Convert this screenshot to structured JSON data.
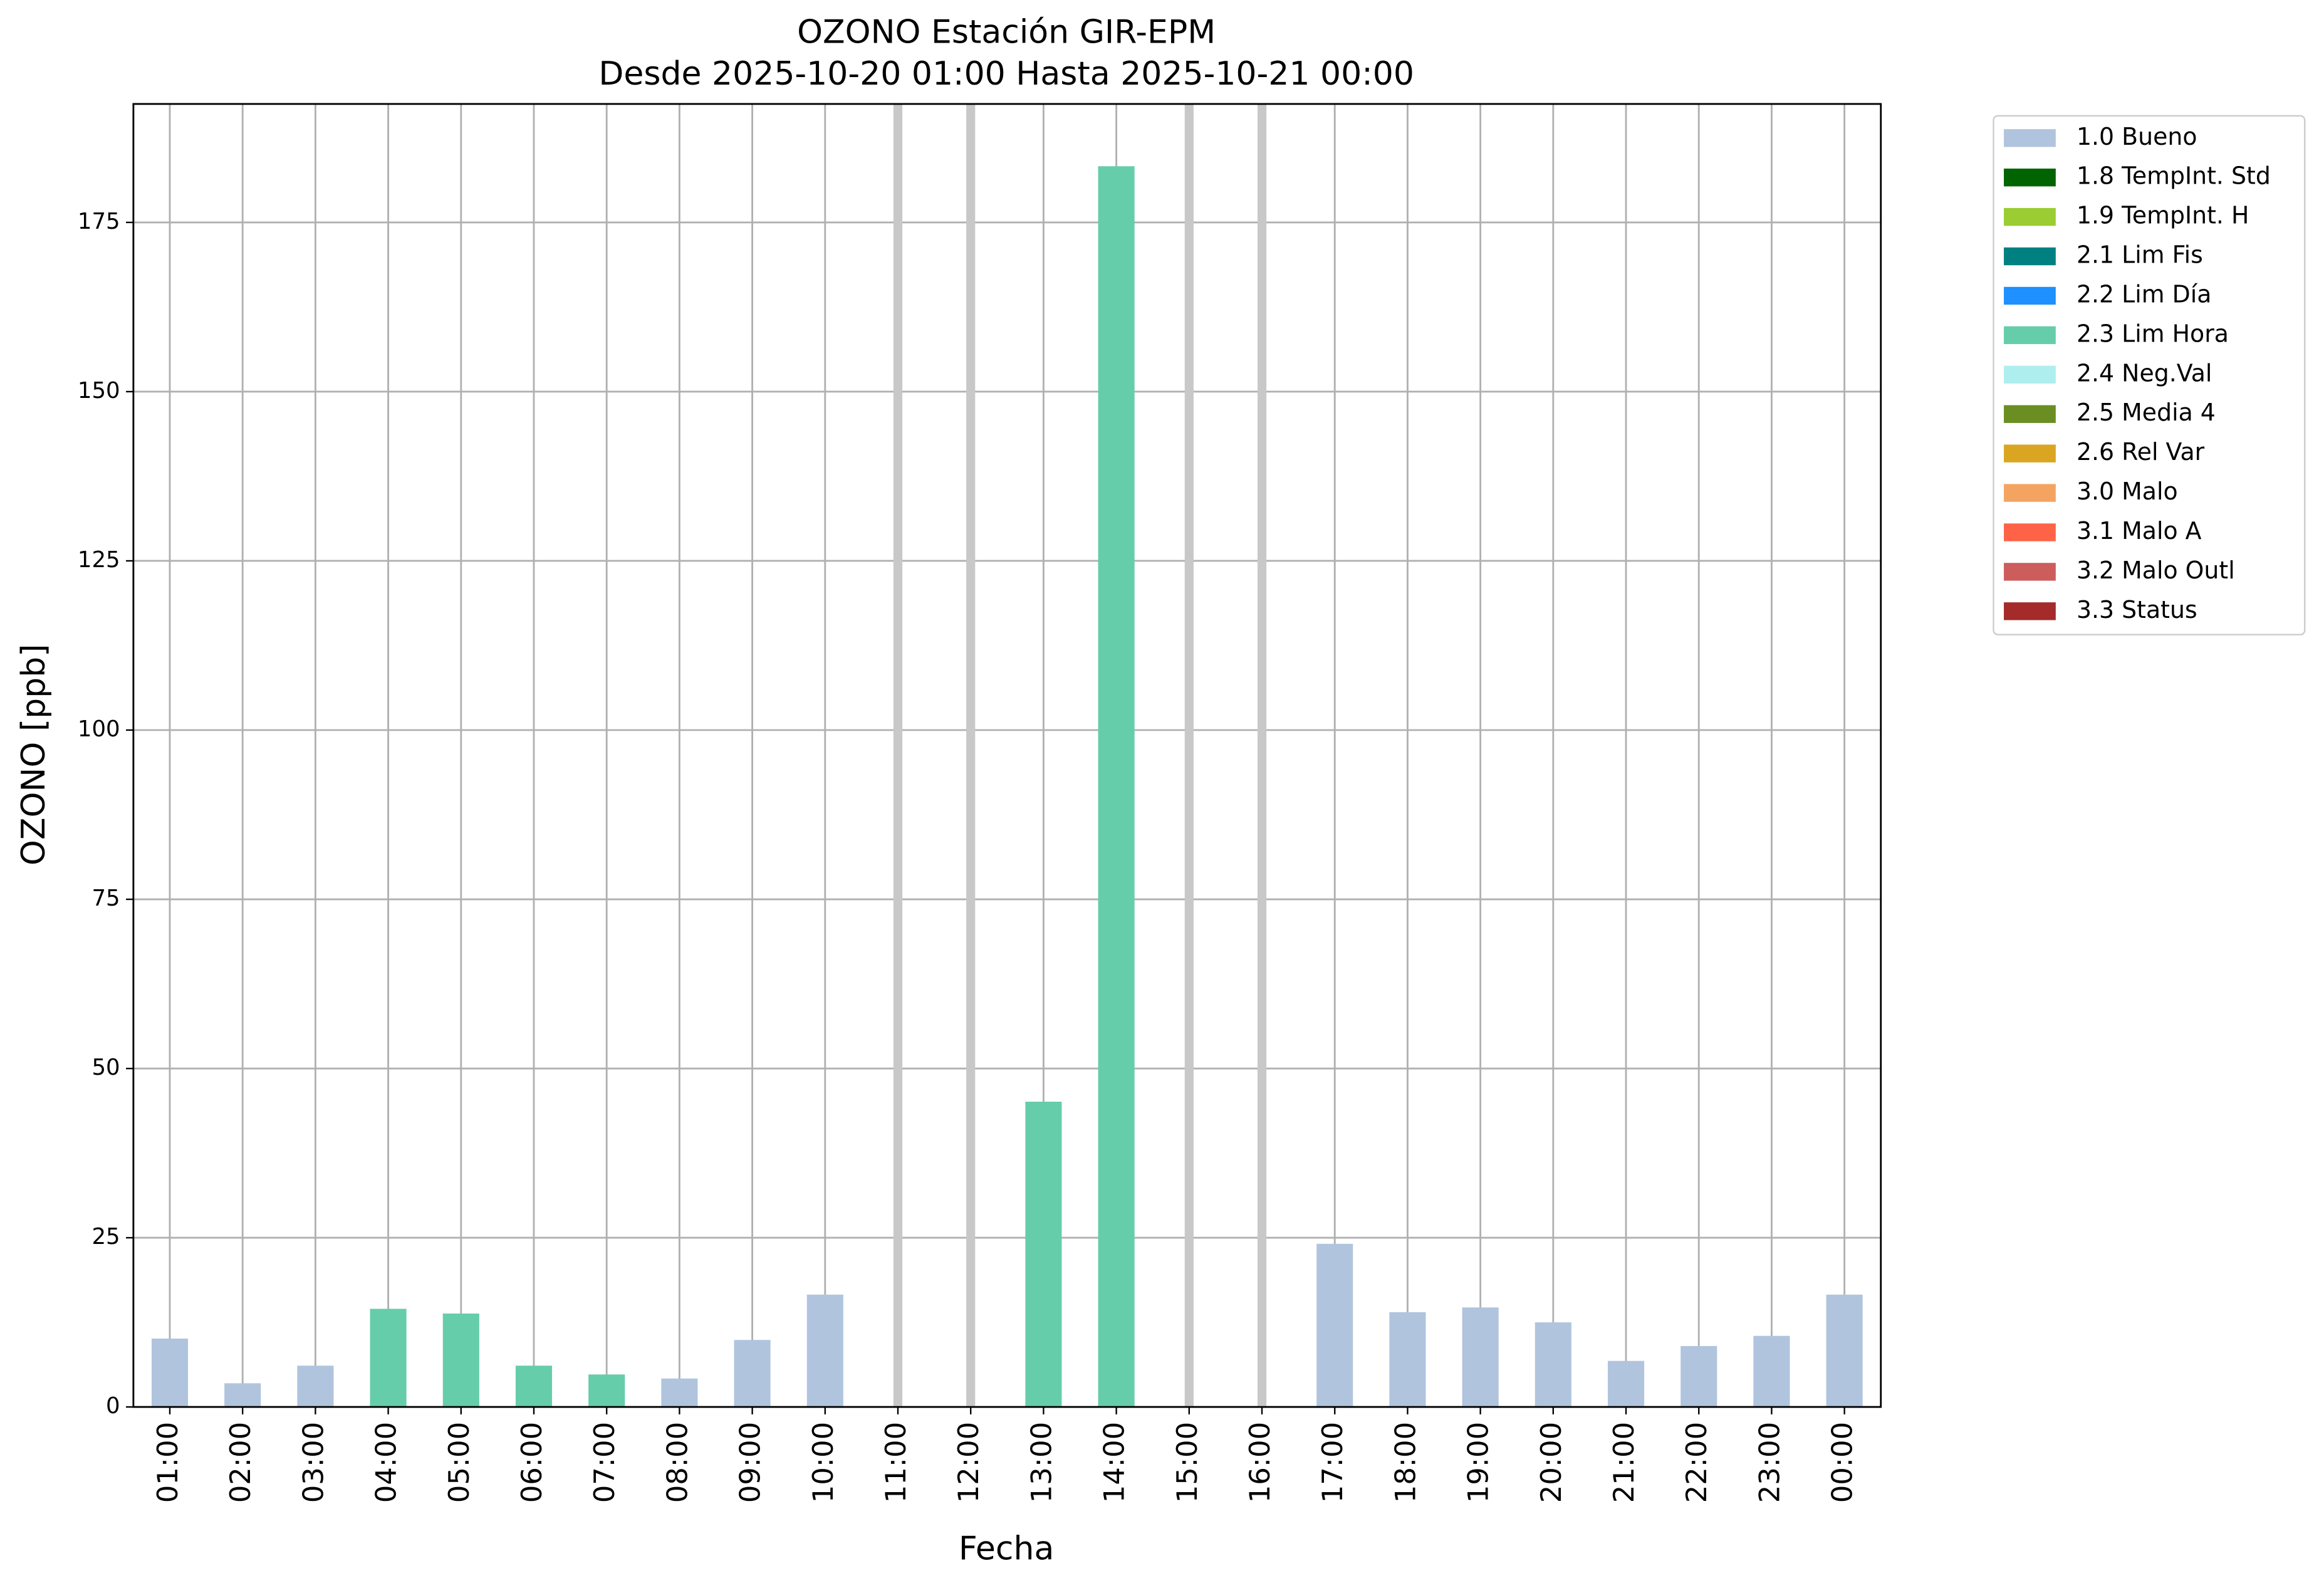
{
  "chart_data": {
    "type": "bar",
    "stacked": true,
    "title": "OZONO Estación GIR-EPM",
    "subtitle": "Desde 2025-10-20 01:00 Hasta 2025-10-21 00:00",
    "x_label": "Fecha",
    "y_label": "OZONO [ppb]",
    "categories": [
      "01:00",
      "02:00",
      "03:00",
      "04:00",
      "05:00",
      "06:00",
      "07:00",
      "08:00",
      "09:00",
      "10:00",
      "11:00",
      "12:00",
      "13:00",
      "14:00",
      "15:00",
      "16:00",
      "17:00",
      "18:00",
      "19:00",
      "20:00",
      "21:00",
      "22:00",
      "23:00",
      "00:00"
    ],
    "series": [
      {
        "name": "1.0 Bueno",
        "color": "#b0c4de",
        "values": [
          10.1,
          3.5,
          6.1,
          null,
          null,
          null,
          null,
          4.2,
          9.9,
          16.6,
          null,
          null,
          null,
          null,
          null,
          null,
          24.1,
          14.0,
          14.7,
          12.5,
          6.8,
          9.0,
          10.5,
          16.6
        ]
      },
      {
        "name": "1.8 TempInt. Std",
        "color": "#006400",
        "values": [
          null,
          null,
          null,
          null,
          null,
          null,
          null,
          null,
          null,
          null,
          null,
          null,
          null,
          null,
          null,
          null,
          null,
          null,
          null,
          null,
          null,
          null,
          null,
          null
        ]
      },
      {
        "name": "1.9 TempInt. H",
        "color": "#9acd32",
        "values": [
          null,
          null,
          null,
          null,
          null,
          null,
          null,
          null,
          null,
          null,
          null,
          null,
          null,
          null,
          null,
          null,
          null,
          null,
          null,
          null,
          null,
          null,
          null,
          null
        ]
      },
      {
        "name": "2.1 Lim Fis",
        "color": "#008080",
        "values": [
          null,
          null,
          null,
          null,
          null,
          null,
          null,
          null,
          null,
          null,
          null,
          null,
          null,
          null,
          null,
          null,
          null,
          null,
          null,
          null,
          null,
          null,
          null,
          null
        ]
      },
      {
        "name": "2.2 Lim Día",
        "color": "#1e90ff",
        "values": [
          null,
          null,
          null,
          null,
          null,
          null,
          null,
          null,
          null,
          null,
          null,
          null,
          null,
          null,
          null,
          null,
          null,
          null,
          null,
          null,
          null,
          null,
          null,
          null
        ]
      },
      {
        "name": "2.3 Lim Hora",
        "color": "#66cdaa",
        "values": [
          null,
          null,
          null,
          14.5,
          13.8,
          6.1,
          4.8,
          null,
          null,
          null,
          null,
          null,
          45.1,
          183.3,
          null,
          null,
          null,
          null,
          null,
          null,
          null,
          null,
          null,
          null
        ]
      },
      {
        "name": "2.4 Neg.Val",
        "color": "#afeeee",
        "values": [
          null,
          null,
          null,
          null,
          null,
          null,
          null,
          null,
          null,
          null,
          null,
          null,
          null,
          null,
          null,
          null,
          null,
          null,
          null,
          null,
          null,
          null,
          null,
          null
        ]
      },
      {
        "name": "2.5 Media 4",
        "color": "#6b8e23",
        "values": [
          null,
          null,
          null,
          null,
          null,
          null,
          null,
          null,
          null,
          null,
          null,
          null,
          null,
          null,
          null,
          null,
          null,
          null,
          null,
          null,
          null,
          null,
          null,
          null
        ]
      },
      {
        "name": "2.6 Rel Var",
        "color": "#daa520",
        "values": [
          null,
          null,
          null,
          null,
          null,
          null,
          null,
          null,
          null,
          null,
          null,
          null,
          null,
          null,
          null,
          null,
          null,
          null,
          null,
          null,
          null,
          null,
          null,
          null
        ]
      },
      {
        "name": "3.0 Malo",
        "color": "#f4a460",
        "values": [
          null,
          null,
          null,
          null,
          null,
          null,
          null,
          null,
          null,
          null,
          null,
          null,
          null,
          null,
          null,
          null,
          null,
          null,
          null,
          null,
          null,
          null,
          null,
          null
        ]
      },
      {
        "name": "3.1 Malo A",
        "color": "#ff6347",
        "values": [
          null,
          null,
          null,
          null,
          null,
          null,
          null,
          null,
          null,
          null,
          null,
          null,
          null,
          null,
          null,
          null,
          null,
          null,
          null,
          null,
          null,
          null,
          null,
          null
        ]
      },
      {
        "name": "3.2 Malo Outl",
        "color": "#cd5c5c",
        "values": [
          null,
          null,
          null,
          null,
          null,
          null,
          null,
          null,
          null,
          null,
          null,
          null,
          null,
          null,
          null,
          null,
          null,
          null,
          null,
          null,
          null,
          null,
          null,
          null
        ]
      },
      {
        "name": "3.3 Status",
        "color": "#a52a2a",
        "values": [
          null,
          null,
          null,
          null,
          null,
          null,
          null,
          null,
          null,
          null,
          null,
          null,
          null,
          null,
          null,
          null,
          null,
          null,
          null,
          null,
          null,
          null,
          null,
          null
        ]
      }
    ],
    "ylim": [
      0,
      192.5
    ],
    "yticks": [
      0,
      25,
      50,
      75,
      100,
      125,
      150,
      175
    ],
    "grid": true,
    "legend": "outside right"
  }
}
